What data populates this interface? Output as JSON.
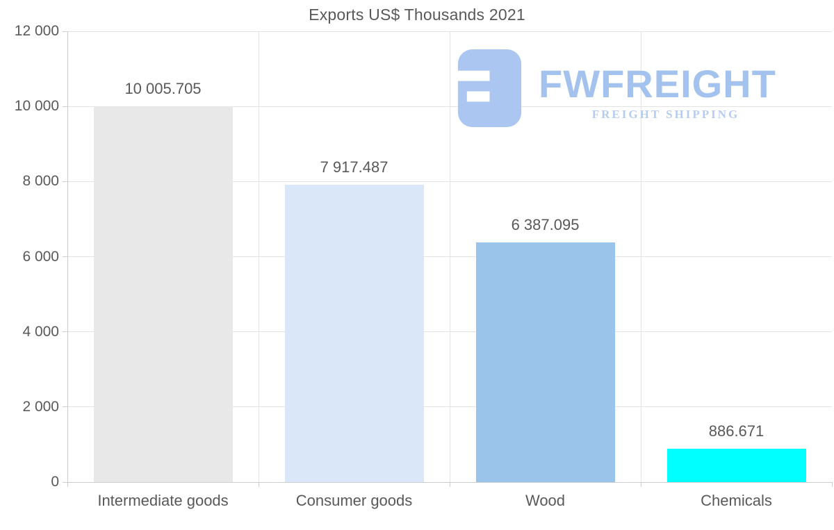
{
  "title": "Exports US$ Thousands 2021",
  "logo": {
    "wordmark": "FWFREIGHT",
    "tagline": "FREIGHT SHIPPING",
    "icon": "fwfreight-f-block-icon",
    "icon_color": "#abc6f1",
    "wordmark_color": "#a4c2ee",
    "tagline_color": "#b6cdf3"
  },
  "theme": {
    "background": "#ffffff",
    "text_color": "#595959",
    "grid_color": "#e3e3e3",
    "axis_color": "#c9cdd0"
  },
  "chart_data": {
    "type": "bar",
    "title": "Exports US$ Thousands 2021",
    "categories": [
      "Intermediate goods",
      "Consumer goods",
      "Wood",
      "Chemicals"
    ],
    "values": [
      10005.705,
      7917.487,
      6387.095,
      886.671
    ],
    "value_labels": [
      "10 005.705",
      "7 917.487",
      "6 387.095",
      "886.671"
    ],
    "bar_colors": [
      "#e8e8e8",
      "#d9e7f8",
      "#9ac4e9",
      "#00ffff"
    ],
    "xlabel": "",
    "ylabel": "",
    "ylim": [
      0,
      12000
    ],
    "y_ticks": [
      {
        "value": 0,
        "label": "0"
      },
      {
        "value": 2000,
        "label": "2 000"
      },
      {
        "value": 4000,
        "label": "4 000"
      },
      {
        "value": 6000,
        "label": "6 000"
      },
      {
        "value": 8000,
        "label": "8 000"
      },
      {
        "value": 10000,
        "label": "10 000"
      },
      {
        "value": 12000,
        "label": "12 000"
      }
    ],
    "grid": true,
    "legend": false,
    "value_labels_position": "above-bars"
  }
}
